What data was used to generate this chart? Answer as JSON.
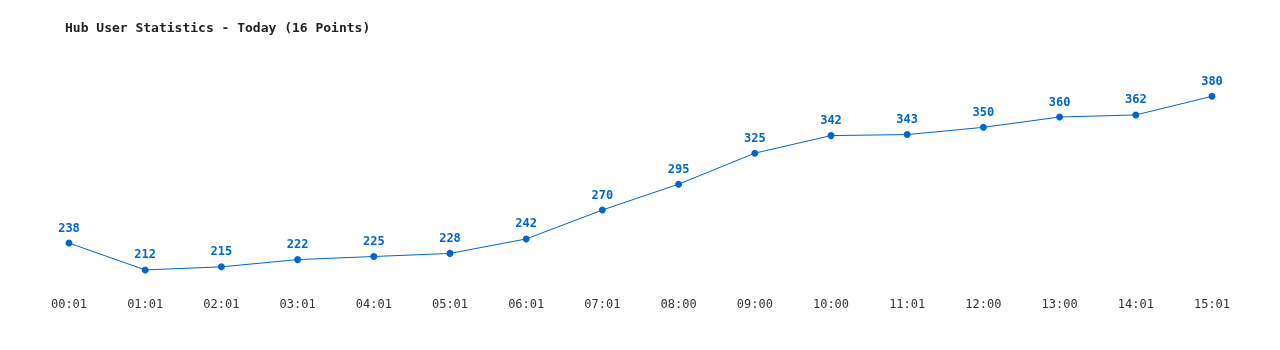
{
  "chart_data": {
    "type": "line",
    "title": "Hub User Statistics - Today (16 Points)",
    "categories": [
      "00:01",
      "01:01",
      "02:01",
      "03:01",
      "04:01",
      "05:01",
      "06:01",
      "07:01",
      "08:00",
      "09:00",
      "10:00",
      "11:01",
      "12:00",
      "13:00",
      "14:01",
      "15:01"
    ],
    "series": [
      {
        "color": "#0066cc",
        "values": [
          238,
          212,
          215,
          222,
          225,
          228,
          242,
          270,
          295,
          325,
          342,
          343,
          350,
          360,
          362,
          380
        ]
      }
    ],
    "data_labels": true,
    "marker": "circle",
    "line_style": "solid",
    "grid": false,
    "tick_labels": "x"
  }
}
